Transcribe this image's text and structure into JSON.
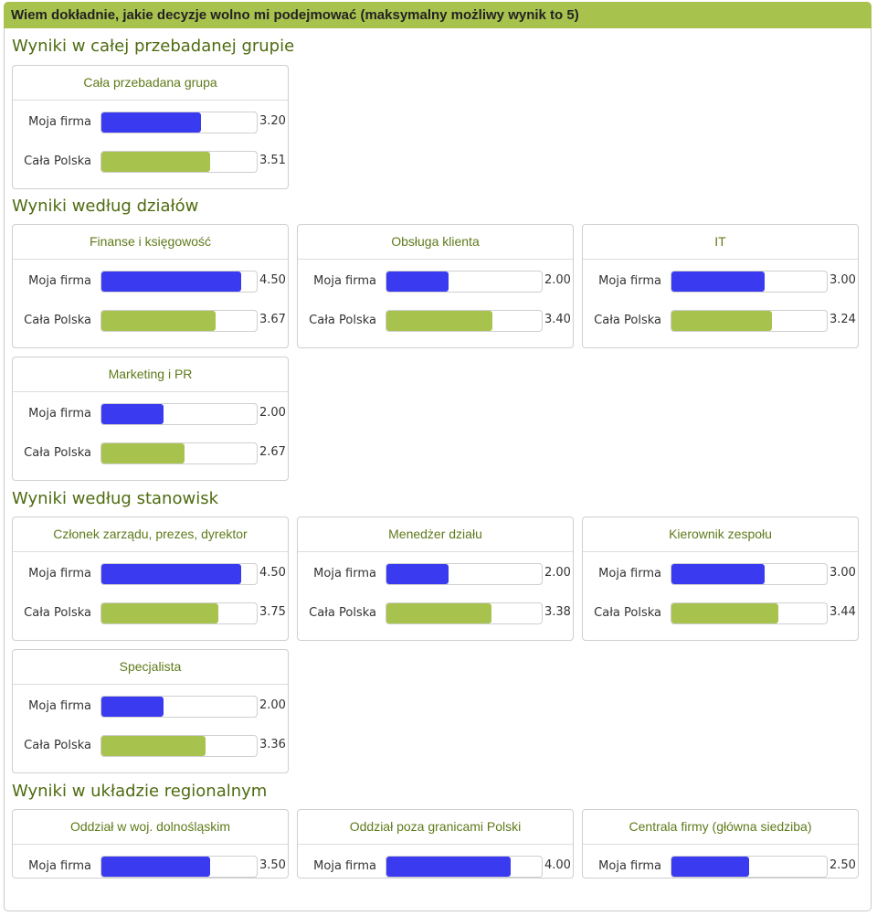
{
  "header": {
    "title": "Wiem dokładnie, jakie decyzje wolno mi podejmować (maksymalny możliwy wynik to 5)"
  },
  "colors": {
    "moja_firma": "#3a3af0",
    "cala_polska": "#a8c24e"
  },
  "chart_data": {
    "type": "bar",
    "max": 5,
    "row_labels": {
      "moja_firma": "Moja firma",
      "cala_polska": "Cała Polska"
    },
    "sections": [
      {
        "title": "Wyniki w całej przebadanej grupie",
        "groups": [
          {
            "name": "Cała przebadana grupa",
            "moja_firma": "3.20",
            "cala_polska": "3.51"
          }
        ]
      },
      {
        "title": "Wyniki według działów",
        "groups": [
          {
            "name": "Finanse i księgowość",
            "moja_firma": "4.50",
            "cala_polska": "3.67"
          },
          {
            "name": "Obsługa klienta",
            "moja_firma": "2.00",
            "cala_polska": "3.40"
          },
          {
            "name": "IT",
            "moja_firma": "3.00",
            "cala_polska": "3.24"
          },
          {
            "name": "Marketing i PR",
            "moja_firma": "2.00",
            "cala_polska": "2.67"
          }
        ]
      },
      {
        "title": "Wyniki według stanowisk",
        "groups": [
          {
            "name": "Członek zarządu, prezes, dyrektor",
            "moja_firma": "4.50",
            "cala_polska": "3.75"
          },
          {
            "name": "Menedżer działu",
            "moja_firma": "2.00",
            "cala_polska": "3.38"
          },
          {
            "name": "Kierownik zespołu",
            "moja_firma": "3.00",
            "cala_polska": "3.44"
          },
          {
            "name": "Specjalista",
            "moja_firma": "2.00",
            "cala_polska": "3.36"
          }
        ]
      },
      {
        "title": "Wyniki w układzie regionalnym",
        "groups": [
          {
            "name": "Oddział w woj. dolnośląskim",
            "moja_firma": "3.50"
          },
          {
            "name": "Oddział poza granicami Polski",
            "moja_firma": "4.00"
          },
          {
            "name": "Centrala firmy (główna siedziba)",
            "moja_firma": "2.50"
          }
        ]
      }
    ]
  }
}
